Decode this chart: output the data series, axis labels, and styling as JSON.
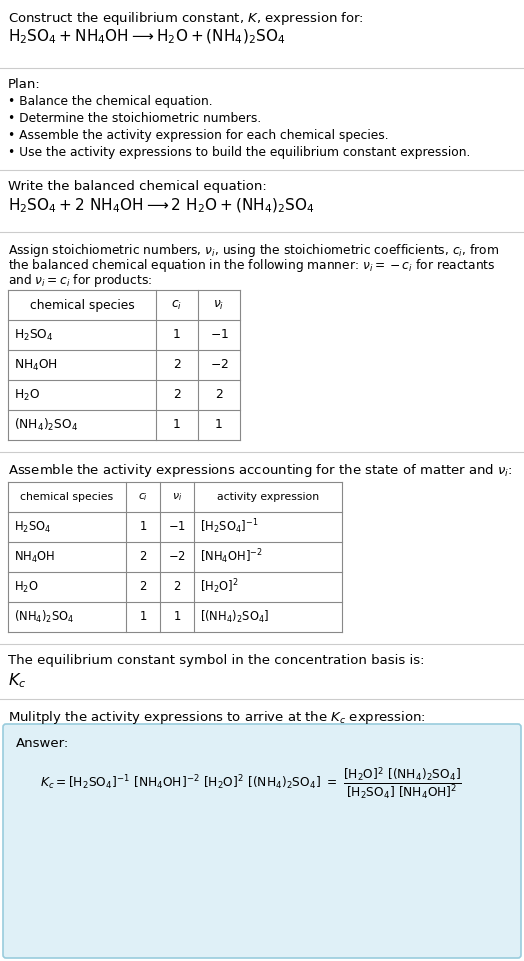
{
  "title_line1": "Construct the equilibrium constant, $K$, expression for:",
  "title_line2": "$\\mathrm{H_2SO_4 + NH_4OH \\longrightarrow H_2O + (NH_4)_2SO_4}$",
  "plan_header": "Plan:",
  "plan_items": [
    "• Balance the chemical equation.",
    "• Determine the stoichiometric numbers.",
    "• Assemble the activity expression for each chemical species.",
    "• Use the activity expressions to build the equilibrium constant expression."
  ],
  "balanced_header": "Write the balanced chemical equation:",
  "balanced_eq": "$\\mathrm{H_2SO_4 + 2\\ NH_4OH \\longrightarrow 2\\ H_2O + (NH_4)_2SO_4}$",
  "stoich_intro_1": "Assign stoichiometric numbers, $\\nu_i$, using the stoichiometric coefficients, $c_i$, from",
  "stoich_intro_2": "the balanced chemical equation in the following manner: $\\nu_i = -c_i$ for reactants",
  "stoich_intro_3": "and $\\nu_i = c_i$ for products:",
  "table1_headers": [
    "chemical species",
    "$c_i$",
    "$\\nu_i$"
  ],
  "table1_col0": [
    "$\\mathrm{H_2SO_4}$",
    "$\\mathrm{NH_4OH}$",
    "$\\mathrm{H_2O}$",
    "$\\mathrm{(NH_4)_2SO_4}$"
  ],
  "table1_col1": [
    "1",
    "2",
    "2",
    "1"
  ],
  "table1_col2": [
    "$-1$",
    "$-2$",
    "2",
    "1"
  ],
  "activity_intro": "Assemble the activity expressions accounting for the state of matter and $\\nu_i$:",
  "table2_headers": [
    "chemical species",
    "$c_i$",
    "$\\nu_i$",
    "activity expression"
  ],
  "table2_col0": [
    "$\\mathrm{H_2SO_4}$",
    "$\\mathrm{NH_4OH}$",
    "$\\mathrm{H_2O}$",
    "$\\mathrm{(NH_4)_2SO_4}$"
  ],
  "table2_col1": [
    "1",
    "2",
    "2",
    "1"
  ],
  "table2_col2": [
    "$-1$",
    "$-2$",
    "2",
    "1"
  ],
  "table2_col3": [
    "$[\\mathrm{H_2SO_4}]^{-1}$",
    "$[\\mathrm{NH_4OH}]^{-2}$",
    "$[\\mathrm{H_2O}]^{2}$",
    "$[(\\mathrm{NH_4})_2\\mathrm{SO_4}]$"
  ],
  "kc_text": "The equilibrium constant symbol in the concentration basis is:",
  "kc_symbol": "$K_c$",
  "multiply_text": "Mulitply the activity expressions to arrive at the $K_c$ expression:",
  "answer_label": "Answer:",
  "bg_color": "#ffffff",
  "table_color": "#888888",
  "answer_bg": "#dff0f7",
  "answer_border": "#99ccdd",
  "text_color": "#000000",
  "fs": 9.5,
  "fs_small": 8.8
}
